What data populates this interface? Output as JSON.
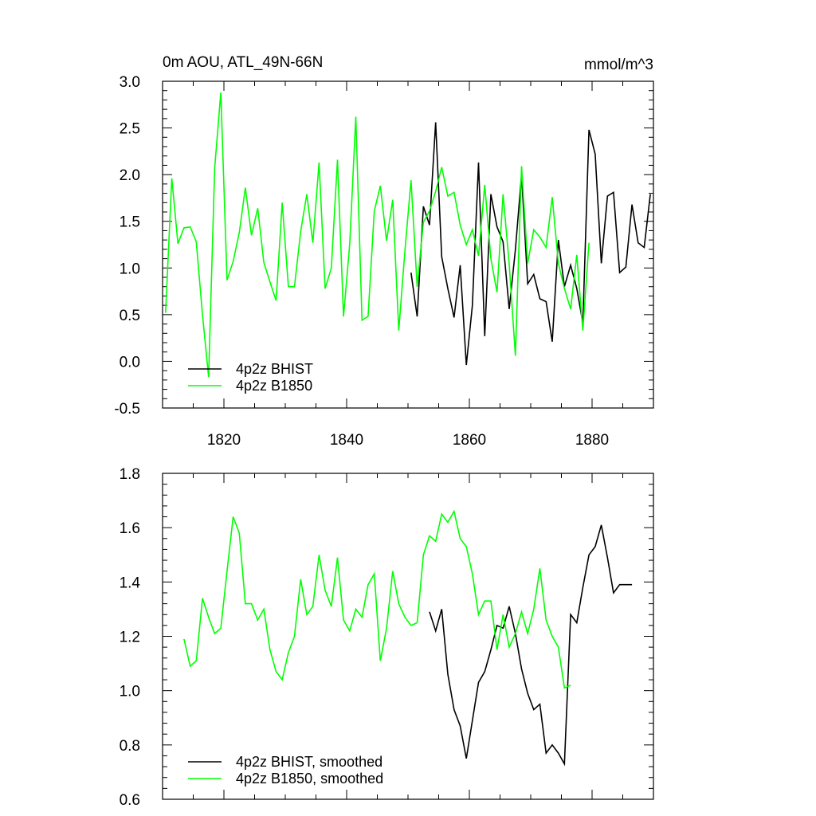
{
  "chart_data": [
    {
      "type": "line",
      "title": "0m AOU, ATL_49N-66N",
      "title_right": "mmol/m^3",
      "xlim": [
        1810,
        1890
      ],
      "ylim": [
        -0.5,
        3.0
      ],
      "x_ticks": [
        1820,
        1840,
        1860,
        1880
      ],
      "x_tick_labels": [
        "1820",
        "1840",
        "1860",
        "1880"
      ],
      "y_ticks": [
        -0.5,
        0.0,
        0.5,
        1.0,
        1.5,
        2.0,
        2.5,
        3.0
      ],
      "y_tick_labels": [
        "-0.5",
        "0.0",
        "0.5",
        "1.0",
        "1.5",
        "2.0",
        "2.5",
        "3.0"
      ],
      "legend_position": "bottom-left",
      "series": [
        {
          "name": "4p2z BHIST",
          "color": "#000000",
          "x": [
            1850.5,
            1851.5,
            1852.5,
            1853.5,
            1854.5,
            1855.5,
            1856.5,
            1857.5,
            1858.5,
            1859.5,
            1860.5,
            1861.5,
            1862.5,
            1863.5,
            1864.5,
            1865.5,
            1866.5,
            1867.5,
            1868.5,
            1869.5,
            1870.5,
            1871.5,
            1872.5,
            1873.5,
            1874.5,
            1875.5,
            1876.5,
            1877.5,
            1878.5,
            1879.5,
            1880.5,
            1881.5,
            1882.5,
            1883.5,
            1884.5,
            1885.5,
            1886.5,
            1887.5,
            1888.5,
            1889.5
          ],
          "y": [
            0.95,
            0.48,
            1.66,
            1.46,
            2.56,
            1.12,
            0.78,
            0.47,
            1.03,
            -0.04,
            0.6,
            2.13,
            0.27,
            1.79,
            1.44,
            1.28,
            0.56,
            1.2,
            2.0,
            0.83,
            0.93,
            0.67,
            0.64,
            0.21,
            1.3,
            0.8,
            1.03,
            0.78,
            0.41,
            2.48,
            2.22,
            1.05,
            1.77,
            1.81,
            0.95,
            1.01,
            1.68,
            1.27,
            1.22,
            1.79
          ]
        },
        {
          "name": "4p2z B1850",
          "color": "#00ff00",
          "x": [
            1810.5,
            1811.5,
            1812.5,
            1813.5,
            1814.5,
            1815.5,
            1816.5,
            1817.5,
            1818.5,
            1819.5,
            1820.5,
            1821.5,
            1822.5,
            1823.5,
            1824.5,
            1825.5,
            1826.5,
            1827.5,
            1828.5,
            1829.5,
            1830.5,
            1831.5,
            1832.5,
            1833.5,
            1834.5,
            1835.5,
            1836.5,
            1837.5,
            1838.5,
            1839.5,
            1840.5,
            1841.5,
            1842.5,
            1843.5,
            1844.5,
            1845.5,
            1846.5,
            1847.5,
            1848.5,
            1849.5,
            1850.5,
            1851.5,
            1852.5,
            1853.5,
            1854.5,
            1855.5,
            1856.5,
            1857.5,
            1858.5,
            1859.5,
            1860.5,
            1861.5,
            1862.5,
            1863.5,
            1864.5,
            1865.5,
            1866.5,
            1867.5,
            1868.5,
            1869.5,
            1870.5,
            1871.5,
            1872.5,
            1873.5,
            1874.5,
            1875.5,
            1876.5,
            1877.5,
            1878.5,
            1879.5
          ],
          "y": [
            0.52,
            1.96,
            1.26,
            1.43,
            1.44,
            1.28,
            0.5,
            -0.17,
            2.07,
            2.88,
            0.87,
            1.07,
            1.38,
            1.86,
            1.35,
            1.64,
            1.06,
            0.85,
            0.65,
            1.7,
            0.8,
            0.8,
            1.39,
            1.79,
            1.27,
            2.13,
            0.78,
            1.0,
            2.16,
            0.48,
            1.26,
            2.62,
            0.44,
            0.48,
            1.61,
            1.88,
            1.29,
            1.73,
            0.33,
            1.19,
            1.94,
            0.8,
            1.49,
            1.61,
            1.82,
            2.08,
            1.77,
            1.81,
            1.46,
            1.25,
            1.41,
            1.13,
            1.89,
            1.1,
            0.74,
            1.79,
            1.04,
            0.06,
            2.09,
            1.05,
            1.41,
            1.33,
            1.22,
            1.76,
            1.05,
            0.78,
            0.56,
            1.14,
            0.33,
            1.27
          ]
        }
      ]
    },
    {
      "type": "line",
      "xlim": [
        1810,
        1890
      ],
      "ylim": [
        0.6,
        1.8
      ],
      "y_ticks": [
        0.6,
        0.8,
        1.0,
        1.2,
        1.4,
        1.6,
        1.8
      ],
      "y_tick_labels": [
        "0.6",
        "0.8",
        "1.0",
        "1.2",
        "1.4",
        "1.6",
        "1.8"
      ],
      "legend_position": "bottom-left",
      "series": [
        {
          "name": "4p2z BHIST, smoothed",
          "color": "#000000",
          "x": [
            1853.5,
            1854.5,
            1855.5,
            1856.5,
            1857.5,
            1858.5,
            1859.5,
            1860.5,
            1861.5,
            1862.5,
            1863.5,
            1864.5,
            1865.5,
            1866.5,
            1867.5,
            1868.5,
            1869.5,
            1870.5,
            1871.5,
            1872.5,
            1873.5,
            1874.5,
            1875.5,
            1876.5,
            1877.5,
            1878.5,
            1879.5,
            1880.5,
            1881.5,
            1882.5,
            1883.5,
            1884.5,
            1885.5,
            1886.5
          ],
          "y": [
            1.29,
            1.22,
            1.3,
            1.06,
            0.93,
            0.87,
            0.75,
            0.89,
            1.03,
            1.07,
            1.15,
            1.24,
            1.23,
            1.31,
            1.21,
            1.08,
            0.99,
            0.93,
            0.95,
            0.77,
            0.8,
            0.77,
            0.73,
            1.28,
            1.25,
            1.38,
            1.5,
            1.53,
            1.61,
            1.49,
            1.36,
            1.39,
            1.39,
            1.39
          ]
        },
        {
          "name": "4p2z B1850, smoothed",
          "color": "#00ff00",
          "x": [
            1813.5,
            1814.5,
            1815.5,
            1816.5,
            1817.5,
            1818.5,
            1819.5,
            1820.5,
            1821.5,
            1822.5,
            1823.5,
            1824.5,
            1825.5,
            1826.5,
            1827.5,
            1828.5,
            1829.5,
            1830.5,
            1831.5,
            1832.5,
            1833.5,
            1834.5,
            1835.5,
            1836.5,
            1837.5,
            1838.5,
            1839.5,
            1840.5,
            1841.5,
            1842.5,
            1843.5,
            1844.5,
            1845.5,
            1846.5,
            1847.5,
            1848.5,
            1849.5,
            1850.5,
            1851.5,
            1852.5,
            1853.5,
            1854.5,
            1855.5,
            1856.5,
            1857.5,
            1858.5,
            1859.5,
            1860.5,
            1861.5,
            1862.5,
            1863.5,
            1864.5,
            1865.5,
            1866.5,
            1867.5,
            1868.5,
            1869.5,
            1870.5,
            1871.5,
            1872.5,
            1873.5,
            1874.5,
            1875.5,
            1876.5
          ],
          "y": [
            1.19,
            1.09,
            1.11,
            1.34,
            1.27,
            1.21,
            1.23,
            1.44,
            1.64,
            1.58,
            1.32,
            1.32,
            1.26,
            1.3,
            1.15,
            1.07,
            1.04,
            1.14,
            1.2,
            1.41,
            1.28,
            1.31,
            1.5,
            1.37,
            1.31,
            1.49,
            1.26,
            1.22,
            1.3,
            1.27,
            1.39,
            1.43,
            1.11,
            1.23,
            1.44,
            1.32,
            1.27,
            1.24,
            1.25,
            1.5,
            1.57,
            1.55,
            1.65,
            1.62,
            1.66,
            1.56,
            1.53,
            1.43,
            1.28,
            1.33,
            1.33,
            1.15,
            1.28,
            1.16,
            1.21,
            1.29,
            1.21,
            1.3,
            1.45,
            1.26,
            1.2,
            1.16,
            1.01,
            1.02
          ]
        }
      ]
    }
  ]
}
